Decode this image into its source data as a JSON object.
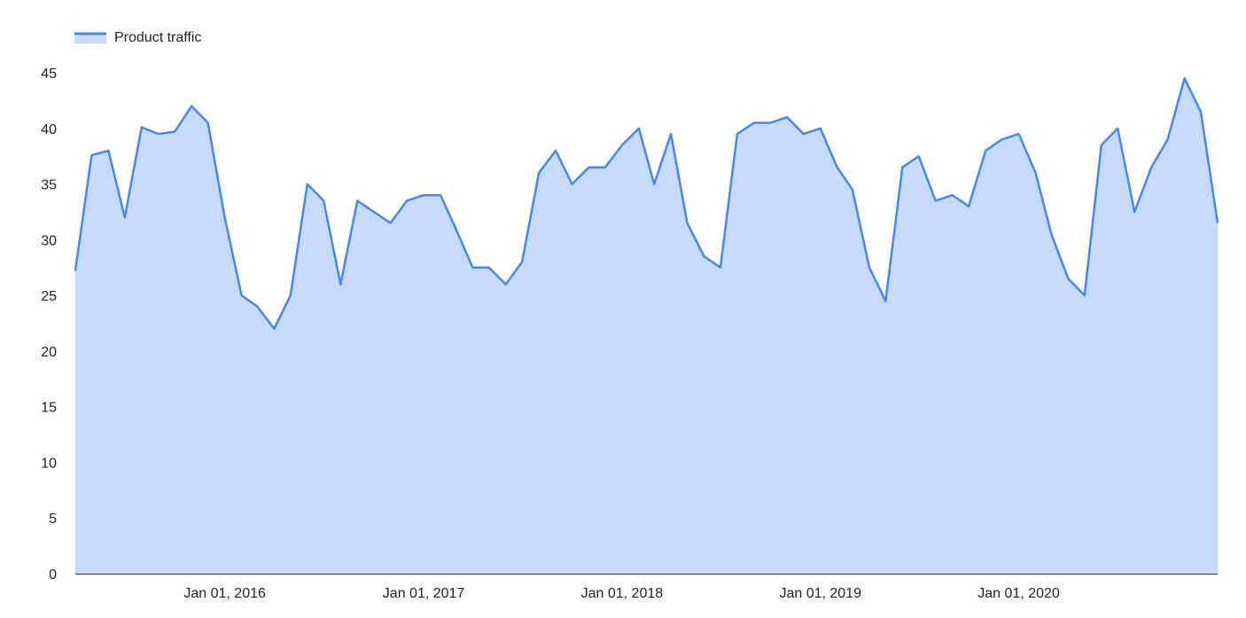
{
  "chart_data": {
    "type": "area",
    "title": "",
    "xlabel": "",
    "ylabel": "",
    "legend": {
      "position": "top-left",
      "entries": [
        "Product traffic"
      ]
    },
    "grid": false,
    "colors": {
      "line": "#4a86e8",
      "fill": "#c6dafa",
      "axis": "#333333",
      "text": "#222222"
    },
    "xlim": [
      "2015-04-01",
      "2021-01-01"
    ],
    "ylim": [
      0,
      45
    ],
    "y_ticks": [
      "0",
      "5",
      "10",
      "15",
      "20",
      "25",
      "30",
      "35",
      "40",
      "45"
    ],
    "x_ticks": [
      {
        "date": "2016-01-01",
        "label": "Jan 01, 2016"
      },
      {
        "date": "2017-01-01",
        "label": "Jan 01, 2017"
      },
      {
        "date": "2018-01-01",
        "label": "Jan 01, 2018"
      },
      {
        "date": "2019-01-01",
        "label": "Jan 01, 2019"
      },
      {
        "date": "2020-01-01",
        "label": "Jan 01, 2020"
      }
    ],
    "series": [
      {
        "name": "Product traffic",
        "x": [
          "2015-04-01",
          "2015-05-01",
          "2015-06-01",
          "2015-07-01",
          "2015-08-01",
          "2015-09-01",
          "2015-10-01",
          "2015-11-01",
          "2015-12-01",
          "2016-01-01",
          "2016-02-01",
          "2016-03-01",
          "2016-04-01",
          "2016-05-01",
          "2016-06-01",
          "2016-07-01",
          "2016-08-01",
          "2016-09-01",
          "2016-10-01",
          "2016-11-01",
          "2016-12-01",
          "2017-01-01",
          "2017-02-01",
          "2017-03-01",
          "2017-04-01",
          "2017-05-01",
          "2017-06-01",
          "2017-07-01",
          "2017-08-01",
          "2017-09-01",
          "2017-10-01",
          "2017-11-01",
          "2017-12-01",
          "2018-01-01",
          "2018-02-01",
          "2018-03-01",
          "2018-04-01",
          "2018-05-01",
          "2018-06-01",
          "2018-07-01",
          "2018-08-01",
          "2018-09-01",
          "2018-10-01",
          "2018-11-01",
          "2018-12-01",
          "2019-01-01",
          "2019-02-01",
          "2019-03-01",
          "2019-04-01",
          "2019-05-01",
          "2019-06-01",
          "2019-07-01",
          "2019-08-01",
          "2019-09-01",
          "2019-10-01",
          "2019-11-01",
          "2019-12-01",
          "2020-01-01",
          "2020-02-01",
          "2020-03-01",
          "2020-04-01",
          "2020-05-01",
          "2020-06-01",
          "2020-07-01",
          "2020-08-01",
          "2020-09-01",
          "2020-10-01",
          "2020-11-01",
          "2020-12-01",
          "2021-01-01"
        ],
        "values": [
          27.2,
          37.6,
          38.0,
          32.0,
          40.1,
          39.5,
          39.7,
          42.0,
          40.5,
          32.0,
          25.0,
          24.0,
          22.0,
          25.0,
          35.0,
          33.5,
          26.0,
          33.5,
          32.5,
          31.5,
          33.5,
          34.0,
          34.0,
          31.0,
          27.5,
          27.5,
          26.0,
          28.0,
          36.0,
          38.0,
          35.0,
          36.5,
          36.5,
          38.5,
          40.0,
          35.0,
          39.5,
          31.5,
          28.5,
          27.5,
          39.5,
          40.5,
          40.5,
          41.0,
          39.5,
          40.0,
          36.5,
          34.5,
          27.5,
          24.5,
          36.5,
          37.5,
          33.5,
          34.0,
          33.0,
          38.0,
          39.0,
          39.5,
          36.0,
          30.5,
          26.5,
          25.0,
          38.5,
          40.0,
          32.5,
          36.5,
          39.0,
          44.5,
          41.5,
          31.5
        ]
      }
    ]
  }
}
